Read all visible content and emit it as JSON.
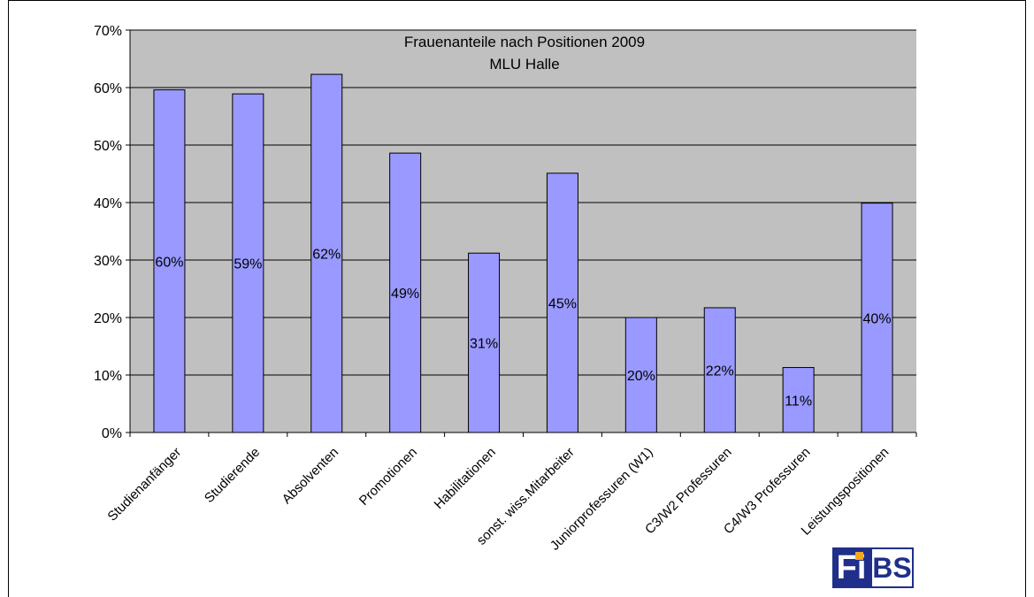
{
  "chart_data": {
    "type": "bar",
    "title": "Frauenanteile nach Positionen 2009",
    "subtitle": "MLU Halle",
    "categories": [
      "Studienanfänger",
      "Studierende",
      "Absolventen",
      "Promotionen",
      "Habilitationen",
      "sonst. wiss.Mitarbeiter",
      "Juniorprofessuren (W1)",
      "C3/W2 Professuren",
      "C4/W3 Professuren",
      "Leistungspositionen"
    ],
    "values": [
      59.6,
      58.9,
      62.3,
      48.6,
      31.2,
      45.1,
      20.0,
      21.7,
      11.3,
      39.9
    ],
    "data_labels": [
      "60%",
      "59%",
      "62%",
      "49%",
      "31%",
      "45%",
      "20%",
      "22%",
      "11%",
      "40%"
    ],
    "yticks": [
      "0%",
      "10%",
      "20%",
      "30%",
      "40%",
      "50%",
      "60%",
      "70%"
    ],
    "ylim": [
      0,
      70
    ],
    "grid": true,
    "legend": "none",
    "colors": {
      "plot_background": "#c0c0c0",
      "bar_fill": "#9999ff",
      "bar_stroke": "#000000",
      "gridline": "#000000"
    }
  },
  "logo": {
    "left_text": "Fi",
    "right_text": "BS"
  }
}
